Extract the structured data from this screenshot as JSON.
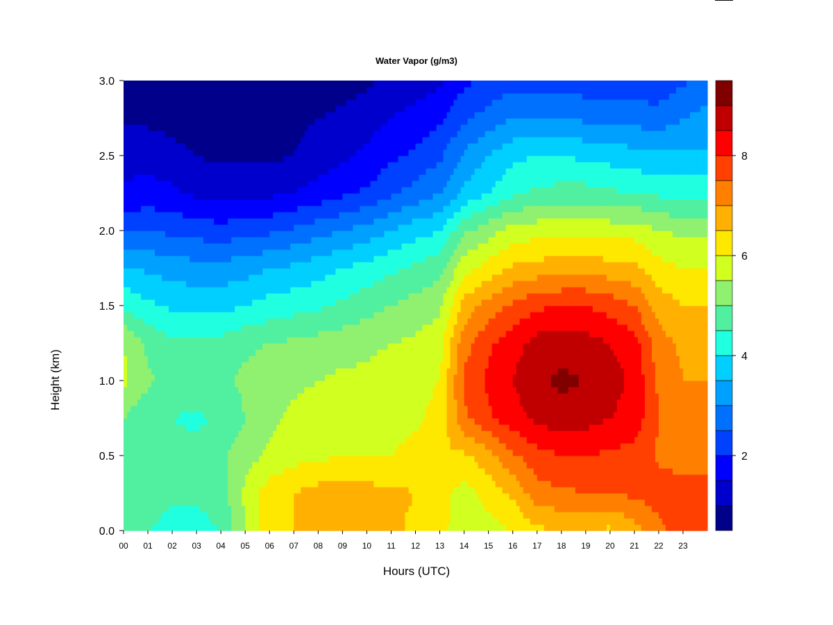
{
  "chart_data": {
    "type": "heatmap",
    "title": "Water Vapor (g/m3)",
    "xlabel": "Hours (UTC)",
    "ylabel": "Height (km)",
    "xlim": [
      0,
      24
    ],
    "ylim": [
      0.0,
      3.0
    ],
    "x_ticks": [
      "00",
      "01",
      "02",
      "03",
      "04",
      "05",
      "06",
      "07",
      "08",
      "09",
      "10",
      "11",
      "12",
      "13",
      "14",
      "15",
      "16",
      "17",
      "18",
      "19",
      "20",
      "21",
      "22",
      "23"
    ],
    "y_ticks": [
      "0.0",
      "0.5",
      "1.0",
      "1.5",
      "2.0",
      "2.5",
      "3.0"
    ],
    "colorbar": {
      "ticks": [
        "2",
        "4",
        "6",
        "8"
      ],
      "tick_values": [
        2,
        4,
        6,
        8
      ],
      "min": 0.5,
      "max": 9.5,
      "colors": [
        "#00008B",
        "#0000CD",
        "#0000FF",
        "#0040FF",
        "#0070FF",
        "#00A0FF",
        "#00CFFF",
        "#20FFE0",
        "#50F0A0",
        "#90F070",
        "#D0FF20",
        "#FFE800",
        "#FFB000",
        "#FF8000",
        "#FF4000",
        "#FF0000",
        "#C00000",
        "#800000"
      ]
    },
    "heights_km": [
      0.0,
      0.25,
      0.5,
      0.75,
      1.0,
      1.25,
      1.5,
      1.75,
      2.0,
      2.25,
      2.5,
      2.75,
      3.0
    ],
    "hours_utc": [
      0,
      1,
      2,
      3,
      4,
      5,
      6,
      7,
      8,
      9,
      10,
      11,
      12,
      13,
      14,
      15,
      16,
      17,
      18,
      19,
      20,
      21,
      22,
      23,
      24
    ],
    "values": [
      [
        4.8,
        4.5,
        4.3,
        4.3,
        4.5,
        5.5,
        6.3,
        6.5,
        6.7,
        6.7,
        6.7,
        6.6,
        6.4,
        6.2,
        5.6,
        5.8,
        6.0,
        6.4,
        6.5,
        6.5,
        6.4,
        6.8,
        7.3,
        7.8,
        7.8
      ],
      [
        4.9,
        4.8,
        4.6,
        4.6,
        4.8,
        5.6,
        6.3,
        6.5,
        6.7,
        6.7,
        6.7,
        6.6,
        6.5,
        6.2,
        5.8,
        6.2,
        6.6,
        7.3,
        7.4,
        7.5,
        7.5,
        7.6,
        7.8,
        7.8,
        7.8
      ],
      [
        4.8,
        4.7,
        4.6,
        4.7,
        4.9,
        5.3,
        5.6,
        5.8,
        5.9,
        6.0,
        6.0,
        6.0,
        6.2,
        6.4,
        6.4,
        6.8,
        7.4,
        7.8,
        8.0,
        8.0,
        7.9,
        7.8,
        7.4,
        7.2,
        7.2
      ],
      [
        5.0,
        4.6,
        4.5,
        4.4,
        4.6,
        5.0,
        5.4,
        5.6,
        5.7,
        5.8,
        5.8,
        5.8,
        5.9,
        6.2,
        7.4,
        7.9,
        8.3,
        8.6,
        8.8,
        8.7,
        8.5,
        8.3,
        7.5,
        7.2,
        7.2
      ],
      [
        5.6,
        5.1,
        4.8,
        4.8,
        4.9,
        5.1,
        5.3,
        5.4,
        5.5,
        5.6,
        5.6,
        5.7,
        5.8,
        6.0,
        7.6,
        8.1,
        8.5,
        8.9,
        9.1,
        9.0,
        8.7,
        8.4,
        7.4,
        7.0,
        7.0
      ],
      [
        5.5,
        4.9,
        4.6,
        4.6,
        4.7,
        4.9,
        5.0,
        5.1,
        5.2,
        5.3,
        5.4,
        5.5,
        5.6,
        5.8,
        7.3,
        7.9,
        8.3,
        8.7,
        8.8,
        8.7,
        8.5,
        8.2,
        7.2,
        6.9,
        6.9
      ],
      [
        4.4,
        4.1,
        3.9,
        3.8,
        3.8,
        4.0,
        4.2,
        4.3,
        4.4,
        4.6,
        4.8,
        5.0,
        5.2,
        5.4,
        6.7,
        7.2,
        7.6,
        7.9,
        8.0,
        8.0,
        7.8,
        7.5,
        6.8,
        6.5,
        6.5
      ],
      [
        3.6,
        3.4,
        3.3,
        3.2,
        3.2,
        3.3,
        3.5,
        3.6,
        3.8,
        4.0,
        4.2,
        4.4,
        4.6,
        4.8,
        5.8,
        6.2,
        6.6,
        6.7,
        6.8,
        6.8,
        6.7,
        6.6,
        6.2,
        6.0,
        6.0
      ],
      [
        2.4,
        2.5,
        2.4,
        2.3,
        2.2,
        2.3,
        2.4,
        2.6,
        2.8,
        3.0,
        3.2,
        3.5,
        3.8,
        4.0,
        4.9,
        5.3,
        5.7,
        5.8,
        5.8,
        5.8,
        5.8,
        5.8,
        5.5,
        5.4,
        5.4
      ],
      [
        1.6,
        1.7,
        1.6,
        1.4,
        1.3,
        1.3,
        1.4,
        1.5,
        1.7,
        1.9,
        2.1,
        2.4,
        2.7,
        3.0,
        3.6,
        4.0,
        4.4,
        4.6,
        4.7,
        4.7,
        4.6,
        4.5,
        4.4,
        4.3,
        4.3
      ],
      [
        1.3,
        1.3,
        1.2,
        1.0,
        0.9,
        0.9,
        0.9,
        1.0,
        1.2,
        1.4,
        1.6,
        1.9,
        2.1,
        2.4,
        3.1,
        3.5,
        3.9,
        4.0,
        4.0,
        3.9,
        3.8,
        3.7,
        3.6,
        3.6,
        3.6
      ],
      [
        0.9,
        0.9,
        0.8,
        0.7,
        0.7,
        0.7,
        0.8,
        0.9,
        1.0,
        1.1,
        1.3,
        1.5,
        1.7,
        1.9,
        2.4,
        2.7,
        3.0,
        3.0,
        3.0,
        2.9,
        2.8,
        2.8,
        2.7,
        3.0,
        3.2
      ],
      [
        0.7,
        0.6,
        0.6,
        0.6,
        0.6,
        0.6,
        0.6,
        0.7,
        0.7,
        0.8,
        0.9,
        1.1,
        1.2,
        1.4,
        1.9,
        2.1,
        2.3,
        2.3,
        2.2,
        2.2,
        2.1,
        2.1,
        2.2,
        2.4,
        2.7
      ]
    ]
  }
}
